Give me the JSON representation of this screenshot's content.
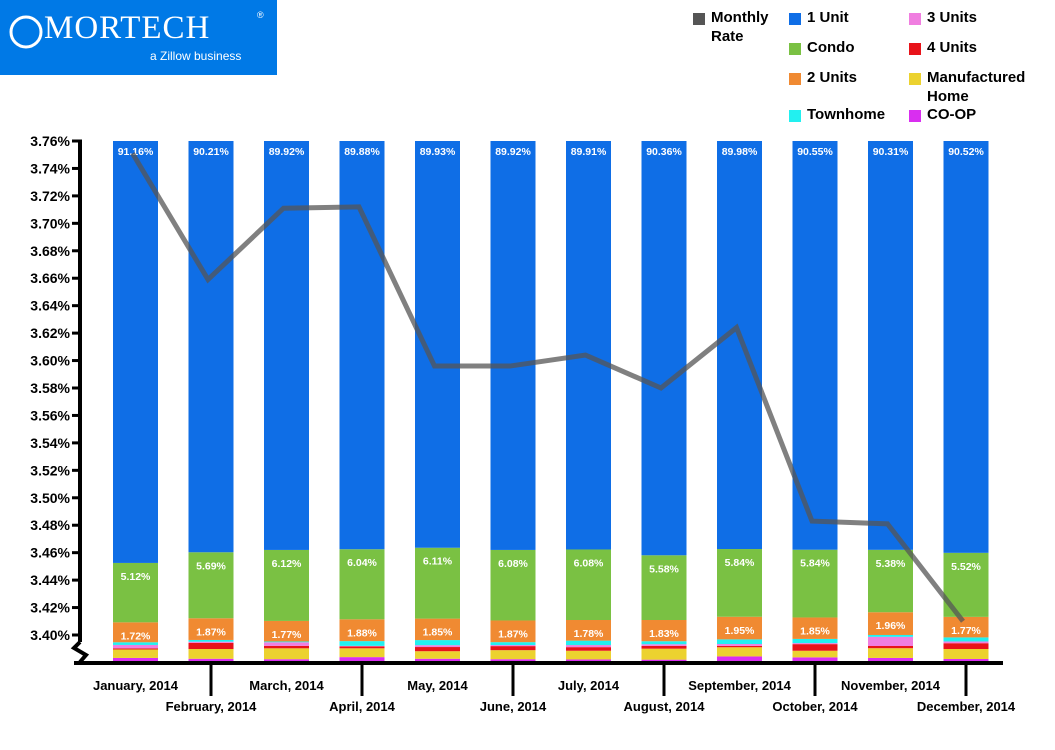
{
  "logo": {
    "brand": "MORTECH",
    "registered": "®",
    "tagline": "a Zillow business",
    "bg": "#0079e6"
  },
  "legend": [
    {
      "label": "Monthly Rate",
      "color": "#555555"
    },
    {
      "label": "1 Unit",
      "color": "#0f6ee6"
    },
    {
      "label": "3 Units",
      "color": "#f07ee0"
    },
    {
      "label": "Condo",
      "color": "#7ac143"
    },
    {
      "label": "4 Units",
      "color": "#e8131a"
    },
    {
      "label": "2 Units",
      "color": "#f08a32"
    },
    {
      "label": "Manufactured Home",
      "color": "#ecd22f"
    },
    {
      "label": "Townhome",
      "color": "#22f0f0"
    },
    {
      "label": "CO-OP",
      "color": "#d92ef0"
    }
  ],
  "chart_data": {
    "type": "bar",
    "stacked": true,
    "overlay_line": "Monthly Rate",
    "categories": [
      "January, 2014",
      "February, 2014",
      "March, 2014",
      "April, 2014",
      "May, 2014",
      "June, 2014",
      "July, 2014",
      "August, 2014",
      "September, 2014",
      "October, 2014",
      "November, 2014",
      "December, 2014"
    ],
    "y_ticks": [
      "3.40%",
      "3.42%",
      "3.44%",
      "3.46%",
      "3.48%",
      "3.50%",
      "3.52%",
      "3.54%",
      "3.56%",
      "3.58%",
      "3.60%",
      "3.62%",
      "3.64%",
      "3.66%",
      "3.68%",
      "3.70%",
      "3.72%",
      "3.74%",
      "3.76%"
    ],
    "ylim": [
      3.38,
      3.76
    ],
    "axis_break": true,
    "series": [
      {
        "name": "CO-OP",
        "color": "#d92ef0",
        "values": [
          0.35,
          0.28,
          0.24,
          0.42,
          0.28,
          0.24,
          0.22,
          0.2,
          0.48,
          0.4,
          0.35,
          0.26
        ]
      },
      {
        "name": "Manufactured Home",
        "color": "#ecd22f",
        "values": [
          0.73,
          0.84,
          0.94,
          0.76,
          0.65,
          0.78,
          0.75,
          0.95,
          0.79,
          0.57,
          0.84,
          0.86
        ]
      },
      {
        "name": "4 Units",
        "color": "#e8131a",
        "values": [
          0.1,
          0.53,
          0.21,
          0.17,
          0.36,
          0.35,
          0.31,
          0.24,
          0.12,
          0.57,
          0.19,
          0.5
        ]
      },
      {
        "name": "3 Units",
        "color": "#f07ee0",
        "values": [
          0.29,
          0.1,
          0.31,
          0.04,
          0.16,
          0.09,
          0.18,
          0.14,
          0.16,
          0.09,
          0.79,
          0.15
        ]
      },
      {
        "name": "Townhome",
        "color": "#22f0f0",
        "values": [
          0.23,
          0.15,
          0.07,
          0.41,
          0.44,
          0.25,
          0.38,
          0.26,
          0.4,
          0.36,
          0.16,
          0.35
        ]
      },
      {
        "name": "2 Units",
        "color": "#f08a32",
        "values": [
          1.72,
          1.87,
          1.77,
          1.88,
          1.85,
          1.87,
          1.78,
          1.83,
          1.95,
          1.85,
          1.96,
          1.77
        ]
      },
      {
        "name": "Condo",
        "color": "#7ac143",
        "values": [
          5.12,
          5.69,
          6.12,
          6.04,
          6.11,
          6.08,
          6.08,
          5.58,
          5.84,
          5.84,
          5.38,
          5.52
        ]
      },
      {
        "name": "1 Unit",
        "color": "#0f6ee6",
        "values": [
          91.16,
          90.21,
          89.92,
          89.88,
          89.93,
          89.92,
          89.91,
          90.36,
          89.98,
          90.55,
          90.31,
          90.52
        ]
      }
    ],
    "line": {
      "name": "Monthly Rate",
      "color": "#555555",
      "values": [
        3.751,
        3.659,
        3.711,
        3.712,
        3.596,
        3.596,
        3.604,
        3.58,
        3.624,
        3.483,
        3.481,
        3.41
      ]
    },
    "data_labels": {
      "1 Unit": [
        "91.16%",
        "90.21%",
        "89.92%",
        "89.88%",
        "89.93%",
        "89.92%",
        "89.91%",
        "90.36%",
        "89.98%",
        "90.55%",
        "90.31%",
        "90.52%"
      ],
      "Condo": [
        "5.12%",
        "5.69%",
        "6.12%",
        "6.04%",
        "6.11%",
        "6.08%",
        "6.08%",
        "5.58%",
        "5.84%",
        "5.84%",
        "5.38%",
        "5.52%"
      ],
      "2 Units": [
        "1.72%",
        "1.87%",
        "1.77%",
        "1.88%",
        "1.85%",
        "1.87%",
        "1.78%",
        "1.83%",
        "1.95%",
        "1.85%",
        "1.96%",
        "1.77%"
      ]
    }
  }
}
